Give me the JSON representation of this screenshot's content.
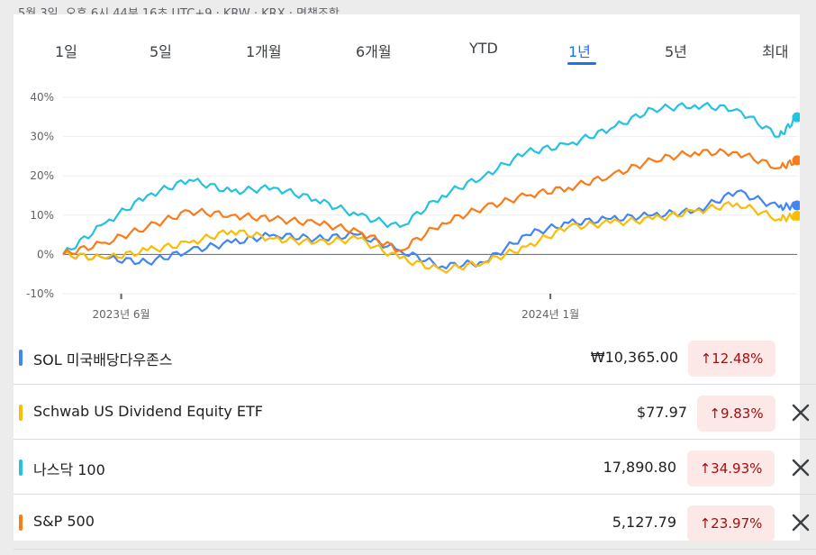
{
  "status_line": "5월 3일, 오후 6시 44분 16초 UTC+9 · KRW · KRX · 면책조항",
  "tabs": [
    "1일",
    "5일",
    "1개월",
    "6개월",
    "YTD",
    "1년",
    "5년",
    "최대"
  ],
  "active_tab": "1년",
  "chart_data": {
    "type": "line",
    "y_ticks": [
      "40%",
      "30%",
      "20%",
      "10%",
      "0%",
      "-10%"
    ],
    "ylim": [
      -10,
      40
    ],
    "x_tick_labels": [
      "2023년 6월",
      "2024년 1월"
    ],
    "x": [
      "2023-05-03",
      "2023-05-24",
      "2023-06-14",
      "2023-07-05",
      "2023-07-26",
      "2023-08-16",
      "2023-09-06",
      "2023-09-27",
      "2023-10-18",
      "2023-11-08",
      "2023-11-29",
      "2023-12-20",
      "2024-01-10",
      "2024-01-31",
      "2024-02-21",
      "2024-03-13",
      "2024-04-03",
      "2024-04-24",
      "2024-05-03"
    ],
    "series": [
      {
        "name": "SOL 미국배당다우존스",
        "color": "#4285f4",
        "values": [
          0,
          -1,
          -2,
          1,
          3,
          5,
          4,
          5,
          1,
          -3,
          -2,
          5,
          8,
          9,
          10,
          11,
          16,
          12,
          12.48
        ]
      },
      {
        "name": "Schwab US Dividend Equity ETF",
        "color": "#fbbc04",
        "values": [
          0,
          -1,
          1,
          3,
          6,
          4,
          3,
          4,
          -1,
          -4,
          -2,
          2,
          7,
          8,
          9,
          11,
          13,
          9,
          9.83
        ]
      },
      {
        "name": "나스닥 100",
        "color": "#24c1e0",
        "values": [
          0,
          8,
          15,
          19,
          16,
          17,
          14,
          10,
          7,
          15,
          20,
          26,
          28,
          32,
          37,
          38,
          37,
          30,
          34.93
        ]
      },
      {
        "name": "S&P 500",
        "color": "#fa7b17",
        "values": [
          0,
          3,
          7,
          11,
          10,
          9,
          8,
          6,
          1,
          8,
          12,
          15,
          17,
          20,
          24,
          26,
          26,
          22,
          23.97
        ]
      }
    ]
  },
  "rows": [
    {
      "name": "SOL 미국배당다우존스",
      "color": "#4285f4",
      "price": "₩10,365.00",
      "change": "↑12.48%",
      "removable": false
    },
    {
      "name": "Schwab US Dividend Equity ETF",
      "color": "#fbbc04",
      "price": "$77.97",
      "change": "↑9.83%",
      "removable": true
    },
    {
      "name": "나스닥 100",
      "color": "#24c1e0",
      "price": "17,890.80",
      "change": "↑34.93%",
      "removable": true
    },
    {
      "name": "S&P 500",
      "color": "#fa7b17",
      "price": "5,127.79",
      "change": "↑23.97%",
      "removable": true
    }
  ]
}
